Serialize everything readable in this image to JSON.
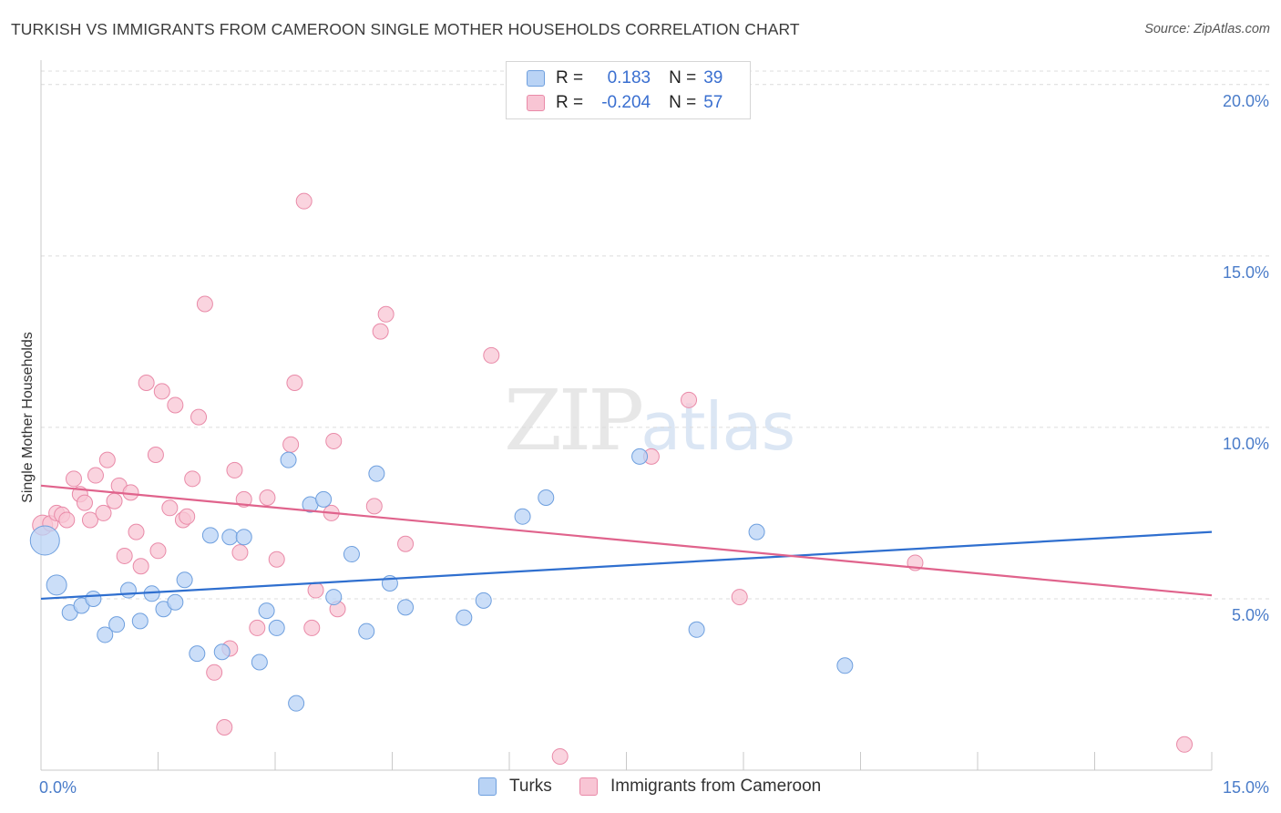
{
  "title": "TURKISH VS IMMIGRANTS FROM CAMEROON SINGLE MOTHER HOUSEHOLDS CORRELATION CHART",
  "source": "Source: ZipAtlas.com",
  "watermark": {
    "zip": "ZIP",
    "atlas": "atlas"
  },
  "colors": {
    "turks_fill": "#b9d3f5",
    "turks_stroke": "#6e9fde",
    "turks_line": "#2f6fcf",
    "cam_fill": "#f8c5d4",
    "cam_stroke": "#e98aa8",
    "cam_line": "#e0638c",
    "grid": "#dcdcdc",
    "tick_text": "#4a7cc9"
  },
  "legend": {
    "rows": [
      {
        "r_label": "R =",
        "r_value": "0.183",
        "n_label": "N =",
        "n_value": "39"
      },
      {
        "r_label": "R =",
        "r_value": "-0.204",
        "n_label": "N =",
        "n_value": "57"
      }
    ]
  },
  "bottom_legend": [
    "Turks",
    "Immigrants from Cameroon"
  ],
  "chart_data": {
    "type": "scatter",
    "title": "TURKISH VS IMMIGRANTS FROM CAMEROON SINGLE MOTHER HOUSEHOLDS CORRELATION CHART",
    "xlabel": "",
    "ylabel": "Single Mother Households",
    "xlim": [
      0,
      15
    ],
    "ylim": [
      0,
      20.5
    ],
    "x_tick_labels": [
      "0.0%",
      "15.0%"
    ],
    "y_ticks": [
      5,
      10,
      15,
      20
    ],
    "y_tick_labels": [
      "5.0%",
      "10.0%",
      "15.0%",
      "20.0%"
    ],
    "grid": true,
    "legend_position": "top-center",
    "series": [
      {
        "name": "Turks",
        "r": 0.183,
        "n": 39,
        "trend": {
          "x": [
            0,
            15
          ],
          "y": [
            5.0,
            6.95
          ]
        },
        "points": [
          {
            "x": 0.05,
            "y": 6.7,
            "s": 3
          },
          {
            "x": 0.2,
            "y": 5.4,
            "s": 2
          },
          {
            "x": 0.37,
            "y": 4.6,
            "s": 1
          },
          {
            "x": 0.52,
            "y": 4.8,
            "s": 1
          },
          {
            "x": 0.67,
            "y": 5.0,
            "s": 1
          },
          {
            "x": 0.82,
            "y": 3.95,
            "s": 1
          },
          {
            "x": 0.97,
            "y": 4.25,
            "s": 1
          },
          {
            "x": 1.12,
            "y": 5.25,
            "s": 1
          },
          {
            "x": 1.27,
            "y": 4.35,
            "s": 1
          },
          {
            "x": 1.42,
            "y": 5.15,
            "s": 1
          },
          {
            "x": 1.57,
            "y": 4.7,
            "s": 1
          },
          {
            "x": 1.72,
            "y": 4.9,
            "s": 1
          },
          {
            "x": 1.84,
            "y": 5.55,
            "s": 1
          },
          {
            "x": 2.0,
            "y": 3.4,
            "s": 1
          },
          {
            "x": 2.17,
            "y": 6.85,
            "s": 1
          },
          {
            "x": 2.32,
            "y": 3.45,
            "s": 1
          },
          {
            "x": 2.42,
            "y": 6.8,
            "s": 1
          },
          {
            "x": 2.6,
            "y": 6.8,
            "s": 1
          },
          {
            "x": 2.8,
            "y": 3.15,
            "s": 1
          },
          {
            "x": 2.89,
            "y": 4.65,
            "s": 1
          },
          {
            "x": 3.02,
            "y": 4.15,
            "s": 1
          },
          {
            "x": 3.17,
            "y": 9.05,
            "s": 1
          },
          {
            "x": 3.27,
            "y": 1.95,
            "s": 1
          },
          {
            "x": 3.45,
            "y": 7.75,
            "s": 1
          },
          {
            "x": 3.62,
            "y": 7.9,
            "s": 1
          },
          {
            "x": 3.75,
            "y": 5.05,
            "s": 1
          },
          {
            "x": 3.98,
            "y": 6.3,
            "s": 1
          },
          {
            "x": 4.17,
            "y": 4.05,
            "s": 1
          },
          {
            "x": 4.3,
            "y": 8.65,
            "s": 1
          },
          {
            "x": 4.47,
            "y": 5.45,
            "s": 1
          },
          {
            "x": 4.67,
            "y": 4.75,
            "s": 1
          },
          {
            "x": 5.42,
            "y": 4.45,
            "s": 1
          },
          {
            "x": 5.67,
            "y": 4.95,
            "s": 1
          },
          {
            "x": 6.17,
            "y": 7.4,
            "s": 1
          },
          {
            "x": 6.47,
            "y": 7.95,
            "s": 1
          },
          {
            "x": 7.67,
            "y": 9.15,
            "s": 1
          },
          {
            "x": 8.4,
            "y": 4.1,
            "s": 1
          },
          {
            "x": 9.17,
            "y": 6.95,
            "s": 1
          },
          {
            "x": 10.3,
            "y": 3.05,
            "s": 1
          }
        ]
      },
      {
        "name": "Immigrants from Cameroon",
        "r": -0.204,
        "n": 57,
        "trend": {
          "x": [
            0,
            15
          ],
          "y": [
            8.3,
            5.1
          ]
        },
        "points": [
          {
            "x": 0.02,
            "y": 7.15,
            "s": 2
          },
          {
            "x": 0.12,
            "y": 7.2,
            "s": 1
          },
          {
            "x": 0.2,
            "y": 7.5,
            "s": 1
          },
          {
            "x": 0.27,
            "y": 7.45,
            "s": 1
          },
          {
            "x": 0.33,
            "y": 7.3,
            "s": 1
          },
          {
            "x": 0.42,
            "y": 8.5,
            "s": 1
          },
          {
            "x": 0.5,
            "y": 8.05,
            "s": 1
          },
          {
            "x": 0.56,
            "y": 7.8,
            "s": 1
          },
          {
            "x": 0.63,
            "y": 7.3,
            "s": 1
          },
          {
            "x": 0.7,
            "y": 8.6,
            "s": 1
          },
          {
            "x": 0.8,
            "y": 7.5,
            "s": 1
          },
          {
            "x": 0.85,
            "y": 9.05,
            "s": 1
          },
          {
            "x": 0.94,
            "y": 7.85,
            "s": 1
          },
          {
            "x": 1.0,
            "y": 8.3,
            "s": 1
          },
          {
            "x": 1.07,
            "y": 6.25,
            "s": 1
          },
          {
            "x": 1.15,
            "y": 8.1,
            "s": 1
          },
          {
            "x": 1.22,
            "y": 6.95,
            "s": 1
          },
          {
            "x": 1.28,
            "y": 5.95,
            "s": 1
          },
          {
            "x": 1.35,
            "y": 11.3,
            "s": 1
          },
          {
            "x": 1.47,
            "y": 9.2,
            "s": 1
          },
          {
            "x": 1.5,
            "y": 6.4,
            "s": 1
          },
          {
            "x": 1.55,
            "y": 11.05,
            "s": 1
          },
          {
            "x": 1.65,
            "y": 7.65,
            "s": 1
          },
          {
            "x": 1.72,
            "y": 10.65,
            "s": 1
          },
          {
            "x": 1.82,
            "y": 7.3,
            "s": 1
          },
          {
            "x": 1.87,
            "y": 7.4,
            "s": 1
          },
          {
            "x": 1.94,
            "y": 8.5,
            "s": 1
          },
          {
            "x": 2.02,
            "y": 10.3,
            "s": 1
          },
          {
            "x": 2.1,
            "y": 13.6,
            "s": 1
          },
          {
            "x": 2.22,
            "y": 2.85,
            "s": 1
          },
          {
            "x": 2.35,
            "y": 1.25,
            "s": 1
          },
          {
            "x": 2.42,
            "y": 3.55,
            "s": 1
          },
          {
            "x": 2.48,
            "y": 8.75,
            "s": 1
          },
          {
            "x": 2.55,
            "y": 6.35,
            "s": 1
          },
          {
            "x": 2.6,
            "y": 7.9,
            "s": 1
          },
          {
            "x": 2.77,
            "y": 4.15,
            "s": 1
          },
          {
            "x": 2.9,
            "y": 7.95,
            "s": 1
          },
          {
            "x": 3.02,
            "y": 6.15,
            "s": 1
          },
          {
            "x": 3.2,
            "y": 9.5,
            "s": 1
          },
          {
            "x": 3.25,
            "y": 11.3,
            "s": 1
          },
          {
            "x": 3.37,
            "y": 16.6,
            "s": 1
          },
          {
            "x": 3.47,
            "y": 4.15,
            "s": 1
          },
          {
            "x": 3.52,
            "y": 5.25,
            "s": 1
          },
          {
            "x": 3.72,
            "y": 7.5,
            "s": 1
          },
          {
            "x": 3.75,
            "y": 9.6,
            "s": 1
          },
          {
            "x": 3.8,
            "y": 4.7,
            "s": 1
          },
          {
            "x": 4.27,
            "y": 7.7,
            "s": 1
          },
          {
            "x": 4.35,
            "y": 12.8,
            "s": 1
          },
          {
            "x": 4.42,
            "y": 13.3,
            "s": 1
          },
          {
            "x": 4.67,
            "y": 6.6,
            "s": 1
          },
          {
            "x": 5.77,
            "y": 12.1,
            "s": 1
          },
          {
            "x": 6.65,
            "y": 0.4,
            "s": 1
          },
          {
            "x": 7.82,
            "y": 9.15,
            "s": 1
          },
          {
            "x": 8.3,
            "y": 10.8,
            "s": 1
          },
          {
            "x": 8.95,
            "y": 5.05,
            "s": 1
          },
          {
            "x": 11.2,
            "y": 6.05,
            "s": 1
          },
          {
            "x": 14.65,
            "y": 0.75,
            "s": 1
          }
        ]
      }
    ]
  }
}
